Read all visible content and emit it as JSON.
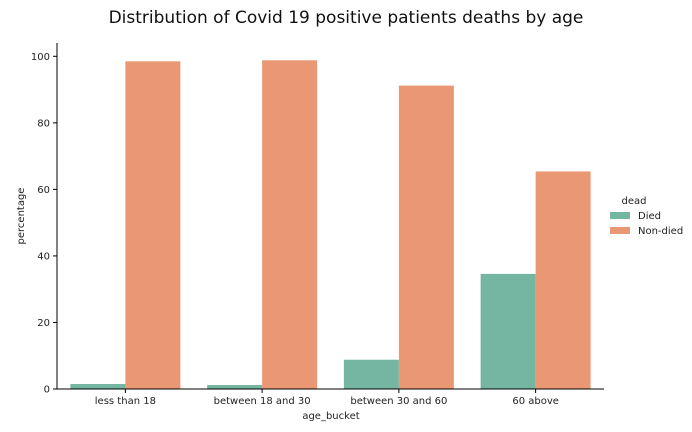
{
  "chart_data": {
    "type": "bar",
    "title": "Distribution of Covid 19 positive patients deaths by age",
    "xlabel": "age_bucket",
    "ylabel": "percentage",
    "categories": [
      "less than 18",
      "between 18 and 30",
      "between 30 and 60",
      "60 above"
    ],
    "series": [
      {
        "name": "Died",
        "color": "#74b6a1",
        "values": [
          1.5,
          1.2,
          8.8,
          34.6
        ]
      },
      {
        "name": "Non-died",
        "color": "#e99873",
        "values": [
          98.5,
          98.8,
          91.2,
          65.4
        ]
      }
    ],
    "ylim": [
      0,
      104
    ],
    "yticks": [
      0,
      20,
      40,
      60,
      80,
      100
    ],
    "grid": false,
    "legend": {
      "title": "dead",
      "placement": "right"
    }
  }
}
